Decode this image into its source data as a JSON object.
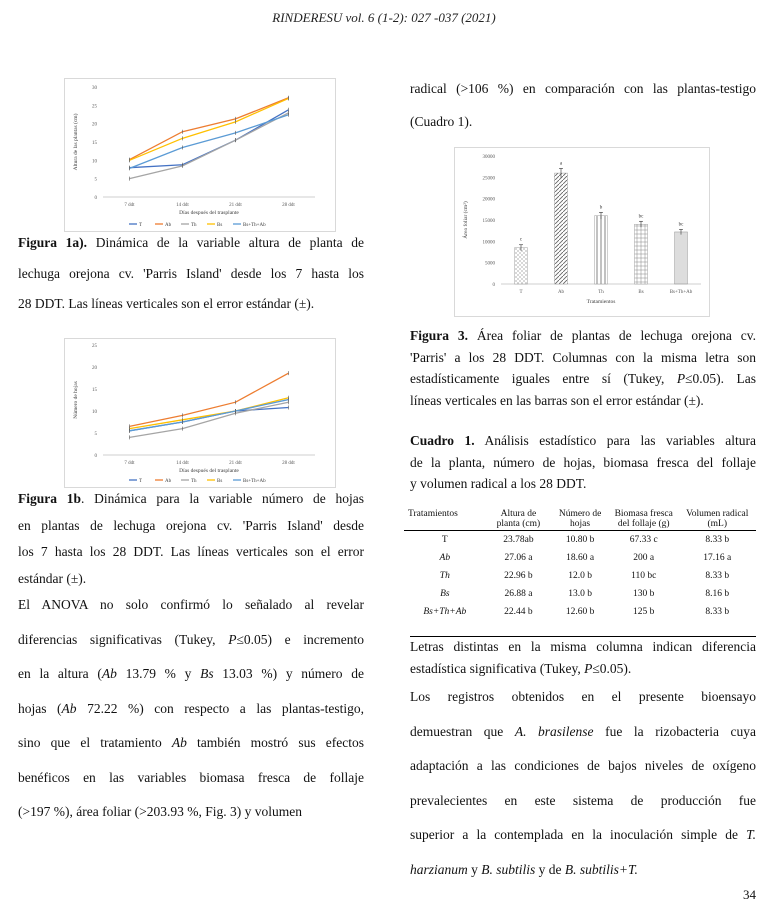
{
  "header": "RINDERESU vol. 6 (1-2): 027 -037 (2021)",
  "page_number": "34",
  "fig1a": {
    "caption_bold": "Figura 1a).",
    "caption_lines": [
      " Dinámica de la variable altura de planta de",
      "lechuga orejona cv. 'Parris Island' desde los 7 hasta los",
      "28 DDT. Las líneas verticales son el error estándar (±)."
    ]
  },
  "fig1b": {
    "caption_bold": "Figura 1b",
    "caption_lines": [
      ". Dinámica para la variable número de hojas",
      "en plantas de lechuga orejona cv. 'Parris Island' desde",
      "los 7 hasta los 28 DDT. Las líneas verticales son el error",
      "estándar (±)."
    ]
  },
  "fig3": {
    "caption_bold": "Figura 3.",
    "caption_lines": [
      " Área foliar de plantas de lechuga orejona cv.",
      "'Parris' a los 28 DDT. Columnas con la misma letra son",
      "estadísticamente iguales entre sí (Tukey, P≤0.05). Las",
      "líneas verticales en las barras son el error estándar (±)."
    ]
  },
  "chart_data": [
    {
      "type": "line",
      "title": "",
      "xlabel": "Días después del trasplante",
      "ylabel": "Altura de las plantas (cm)",
      "x": [
        "7 ddt",
        "14 ddt",
        "21 ddt",
        "28 ddt"
      ],
      "ylim": [
        0,
        30
      ],
      "yticks": [
        "0",
        "5",
        "10",
        "15",
        "20",
        "25",
        "30"
      ],
      "legend_position": "bottom",
      "series": [
        {
          "name": "T",
          "color": "#4472c4",
          "values": [
            8,
            8.8,
            15.5,
            23.78
          ]
        },
        {
          "name": "Ab",
          "color": "#ed7d31",
          "values": [
            10.2,
            17.8,
            21.3,
            27.06
          ]
        },
        {
          "name": "Th",
          "color": "#a5a5a5",
          "values": [
            5,
            8.5,
            15.5,
            22.96
          ]
        },
        {
          "name": "Bs",
          "color": "#ffc000",
          "values": [
            10,
            16,
            20.5,
            26.88
          ]
        },
        {
          "name": "Bs+Th+Ab",
          "color": "#5b9bd5",
          "values": [
            7.8,
            13.5,
            17.5,
            22.44
          ]
        }
      ]
    },
    {
      "type": "line",
      "title": "",
      "xlabel": "Días después del trasplante",
      "ylabel": "Número de hojas",
      "x": [
        "7 ddt",
        "14 ddt",
        "21 ddt",
        "28 ddt"
      ],
      "ylim": [
        0,
        25
      ],
      "yticks": [
        "0",
        "5",
        "10",
        "15",
        "20",
        "25"
      ],
      "legend_position": "bottom",
      "series": [
        {
          "name": "T",
          "color": "#4472c4",
          "values": [
            5.5,
            7.5,
            10,
            10.8
          ]
        },
        {
          "name": "Ab",
          "color": "#ed7d31",
          "values": [
            6.5,
            9,
            12,
            18.6
          ]
        },
        {
          "name": "Th",
          "color": "#a5a5a5",
          "values": [
            4,
            6,
            9.5,
            12
          ]
        },
        {
          "name": "Bs",
          "color": "#ffc000",
          "values": [
            6,
            8,
            10,
            13
          ]
        },
        {
          "name": "Bs+Th+Ab",
          "color": "#5b9bd5",
          "values": [
            5.5,
            7.5,
            10,
            12.6
          ]
        }
      ]
    },
    {
      "type": "bar",
      "title": "",
      "xlabel": "Tratamientos",
      "ylabel": "Área foliar (cm²)",
      "categories": [
        "T",
        "Ab",
        "Th",
        "Bs",
        "Bs+Th+Ab"
      ],
      "values": [
        8500,
        26000,
        16000,
        14000,
        12200
      ],
      "errors": [
        700,
        1100,
        800,
        700,
        600
      ],
      "letters": [
        "c",
        "a",
        "b",
        "bc",
        "bc"
      ],
      "ylim": [
        0,
        30000
      ],
      "yticks": [
        "0",
        "5000",
        "10000",
        "15000",
        "20000",
        "25000",
        "30000"
      ]
    }
  ],
  "left_text": {
    "lines": [
      {
        "segs": [
          {
            "t": "El ANOVA no solo confirmó lo señalado al revelar"
          }
        ]
      },
      {
        "segs": [
          {
            "t": "diferencias significativas (Tukey, "
          },
          {
            "t": "P",
            "i": true
          },
          {
            "t": "≤0.05) e incremento"
          }
        ]
      },
      {
        "segs": [
          {
            "t": "en la altura ("
          },
          {
            "t": "Ab",
            "i": true
          },
          {
            "t": " 13.79 % y "
          },
          {
            "t": "Bs",
            "i": true
          },
          {
            "t": " 13.03 %) y número de"
          }
        ]
      },
      {
        "segs": [
          {
            "t": "hojas ("
          },
          {
            "t": "Ab",
            "i": true
          },
          {
            "t": " 72.22 %) con respecto a las plantas-testigo,"
          }
        ]
      },
      {
        "segs": [
          {
            "t": "sino que el tratamiento "
          },
          {
            "t": "Ab",
            "i": true
          },
          {
            "t": " también mostró sus efectos"
          }
        ]
      },
      {
        "segs": [
          {
            "t": "benéficos en las variables biomasa fresca de follaje"
          }
        ]
      },
      {
        "segs": [
          {
            "t": "(>197 %), área foliar (>203.93 %, Fig. 3) y volumen"
          }
        ]
      }
    ]
  },
  "right_top": [
    "radical (>106 %) en comparación con las plantas-testigo",
    "(Cuadro 1)."
  ],
  "cuadro": {
    "title_bold": "Cuadro 1.",
    "title_lines": [
      " Análisis estadístico para las variables altura",
      "de la planta, número de hojas, biomasa fresca del follaje",
      "y volumen radical a los 28 DDT."
    ],
    "headers": [
      "Tratamientos",
      "Altura de planta (cm)",
      "Número de hojas",
      "Biomasa fresca del follaje (g)",
      "Volumen radical (mL)"
    ],
    "rows": [
      [
        "T",
        "23.78ab",
        "10.80 b",
        "67.33 c",
        "8.33 b"
      ],
      [
        "Ab",
        "27.06 a",
        "18.60 a",
        "200 a",
        "17.16 a"
      ],
      [
        "Th",
        "22.96 b",
        "12.0 b",
        "110 bc",
        "8.33 b"
      ],
      [
        "Bs",
        "26.88 a",
        "13.0 b",
        "130 b",
        "8.16 b"
      ],
      [
        "Bs+Th+Ab",
        "22.44 b",
        "12.60 b",
        "125 b",
        "8.33 b"
      ]
    ],
    "note_lines": [
      "Letras distintas en la misma columna indican diferencia",
      "estadística significativa (Tukey, P≤0.05)."
    ]
  },
  "right_text": {
    "lines": [
      {
        "segs": [
          {
            "t": "Los registros obtenidos en el presente bioensayo"
          }
        ]
      },
      {
        "segs": [
          {
            "t": "demuestran que "
          },
          {
            "t": "A. brasilense",
            "i": true
          },
          {
            "t": " fue la rizobacteria cuya"
          }
        ]
      },
      {
        "segs": [
          {
            "t": "adaptación a las condiciones de bajos niveles de oxígeno"
          }
        ]
      },
      {
        "segs": [
          {
            "t": "prevalecientes en este sistema de producción fue"
          }
        ]
      },
      {
        "segs": [
          {
            "t": "superior a la contemplada en la inoculación simple de "
          },
          {
            "t": "T.",
            "i": true
          }
        ]
      },
      {
        "segs": [
          {
            "t": "harzianum",
            "i": true
          },
          {
            "t": " y "
          },
          {
            "t": "B. subtilis",
            "i": true
          },
          {
            "t": " y de "
          },
          {
            "t": "B. subtilis+T.",
            "i": true
          }
        ]
      }
    ]
  }
}
